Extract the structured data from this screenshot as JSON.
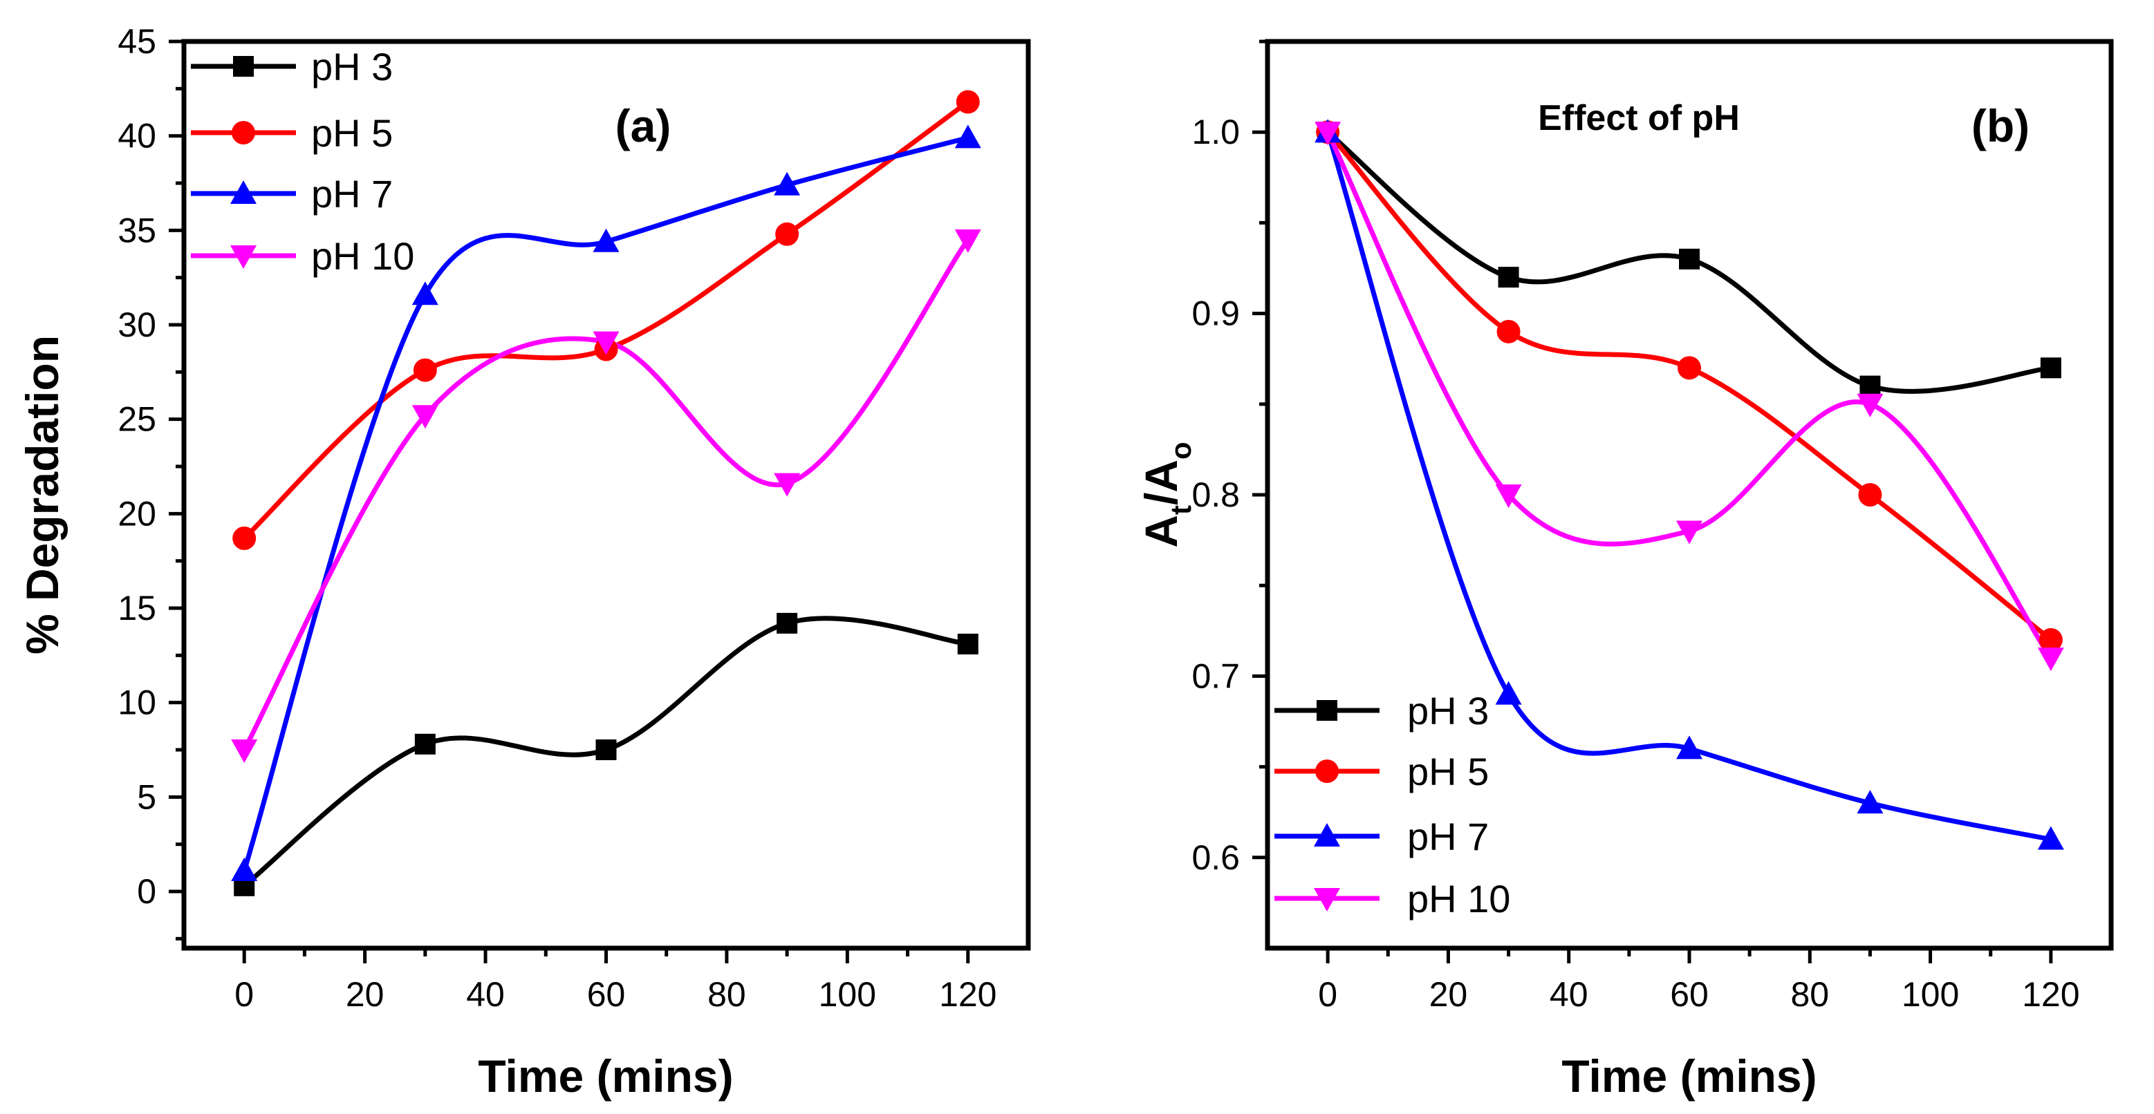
{
  "chart_data": [
    {
      "type": "line",
      "panel_label": "(a)",
      "title": "",
      "xlabel": "Time (mins)",
      "ylabel": "% Degradation",
      "xlim": [
        -10,
        130
      ],
      "ylim": [
        -3,
        45
      ],
      "xticks": [
        0,
        20,
        40,
        60,
        80,
        100,
        120
      ],
      "yticks": [
        0,
        5,
        10,
        15,
        20,
        25,
        30,
        35,
        40,
        45
      ],
      "x": [
        0,
        30,
        60,
        90,
        120
      ],
      "legend_position": "top-left",
      "series": [
        {
          "name": "pH 3",
          "color": "#000000",
          "marker": "square",
          "values": [
            0.3,
            7.8,
            7.5,
            14.2,
            13.1
          ]
        },
        {
          "name": "pH 5",
          "color": "#ff0000",
          "marker": "circle",
          "values": [
            18.7,
            27.6,
            28.7,
            34.8,
            41.8
          ]
        },
        {
          "name": "pH 7",
          "color": "#0000ff",
          "marker": "triangle-up",
          "values": [
            1.1,
            31.6,
            34.4,
            37.4,
            39.9
          ]
        },
        {
          "name": "pH 10",
          "color": "#ff00ff",
          "marker": "triangle-down",
          "values": [
            7.5,
            25.2,
            29.1,
            21.6,
            34.5
          ]
        }
      ]
    },
    {
      "type": "line",
      "panel_label": "(b)",
      "title": "Effect of pH",
      "xlabel": "Time (mins)",
      "ylabel_main": "A",
      "ylabel_sub1": "t",
      "ylabel_mid": "/A",
      "ylabel_sub2": "o",
      "xlim": [
        -10,
        130
      ],
      "ylim": [
        0.55,
        1.05
      ],
      "xticks": [
        0,
        20,
        40,
        60,
        80,
        100,
        120
      ],
      "yticks": [
        0.6,
        0.7,
        0.8,
        0.9,
        1.0
      ],
      "x": [
        0,
        30,
        60,
        90,
        120
      ],
      "legend_position": "bottom-left",
      "series": [
        {
          "name": "pH 3",
          "color": "#000000",
          "marker": "square",
          "values": [
            1.0,
            0.92,
            0.93,
            0.86,
            0.87
          ]
        },
        {
          "name": "pH 5",
          "color": "#ff0000",
          "marker": "circle",
          "values": [
            1.0,
            0.89,
            0.87,
            0.8,
            0.72
          ]
        },
        {
          "name": "pH 7",
          "color": "#0000ff",
          "marker": "triangle-up",
          "values": [
            1.0,
            0.69,
            0.66,
            0.63,
            0.61
          ]
        },
        {
          "name": "pH 10",
          "color": "#ff00ff",
          "marker": "triangle-down",
          "values": [
            1.0,
            0.8,
            0.78,
            0.85,
            0.71
          ]
        }
      ]
    }
  ]
}
